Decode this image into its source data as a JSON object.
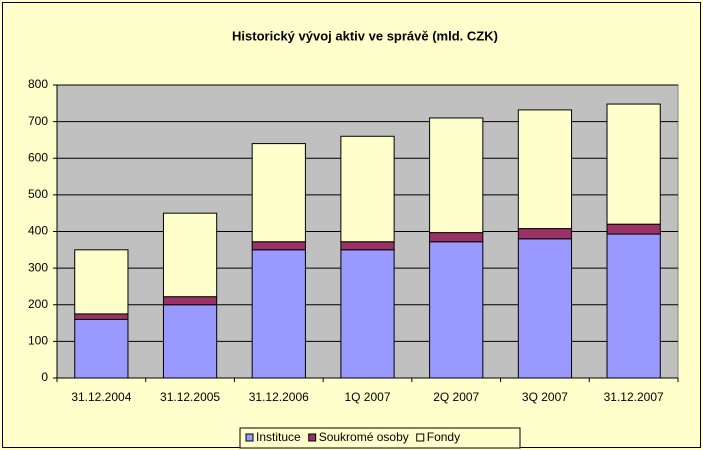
{
  "chart_data": {
    "type": "stacked_bar",
    "title": "Historický vývoj aktiv ve správě (mld. CZK)",
    "categories": [
      "31.12.2004",
      "31.12.2005",
      "31.12.2006",
      "1Q 2007",
      "2Q 2007",
      "3Q 2007",
      "31.12.2007"
    ],
    "series": [
      {
        "name": "Instituce",
        "color": "#9999ff",
        "values": [
          160,
          200,
          350,
          350,
          372,
          380,
          393
        ]
      },
      {
        "name": "Soukromé osoby",
        "color": "#993366",
        "values": [
          15,
          22,
          22,
          22,
          25,
          28,
          27
        ]
      },
      {
        "name": "Fondy",
        "color": "#ffffcc",
        "values": [
          175,
          228,
          268,
          288,
          313,
          324,
          328
        ]
      }
    ],
    "ylim": [
      0,
      800
    ],
    "yticks": [
      0,
      100,
      200,
      300,
      400,
      500,
      600,
      700,
      800
    ],
    "grid": true,
    "legend": "bottom"
  }
}
